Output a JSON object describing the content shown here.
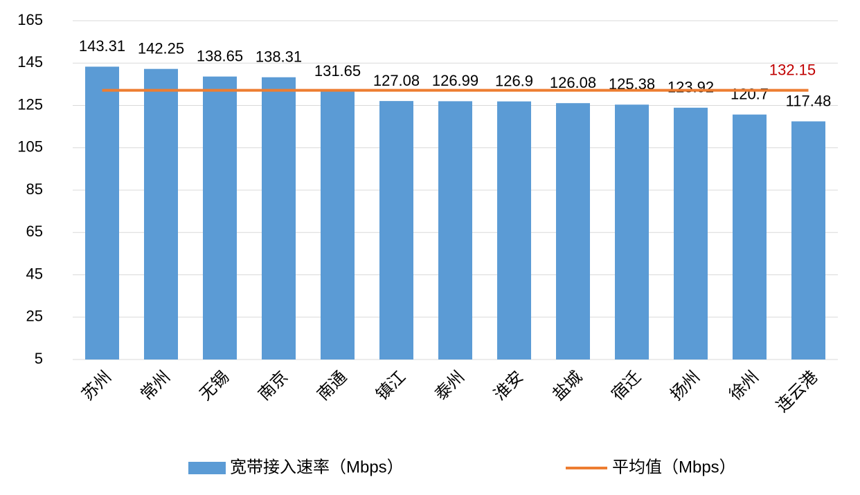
{
  "chart_data": {
    "type": "bar",
    "categories": [
      "苏州",
      "常州",
      "无锡",
      "南京",
      "南通",
      "镇江",
      "泰州",
      "淮安",
      "盐城",
      "宿迁",
      "扬州",
      "徐州",
      "连云港"
    ],
    "series": [
      {
        "name": "宽带接入速率（Mbps）",
        "type": "bar",
        "color": "#5b9bd5",
        "values": [
          143.31,
          142.25,
          138.65,
          138.31,
          131.65,
          127.08,
          126.99,
          126.9,
          126.08,
          125.38,
          123.92,
          120.7,
          117.48
        ]
      },
      {
        "name": "平均值（Mbps）",
        "type": "line",
        "color": "#ed7d31",
        "label_color": "#c00000",
        "values": [
          132.15,
          132.15,
          132.15,
          132.15,
          132.15,
          132.15,
          132.15,
          132.15,
          132.15,
          132.15,
          132.15,
          132.15,
          132.15
        ]
      }
    ],
    "ylim": [
      5,
      165
    ],
    "yticks": [
      5,
      25,
      45,
      65,
      85,
      105,
      125,
      145,
      165
    ],
    "grid": true,
    "legend": "bottom"
  }
}
